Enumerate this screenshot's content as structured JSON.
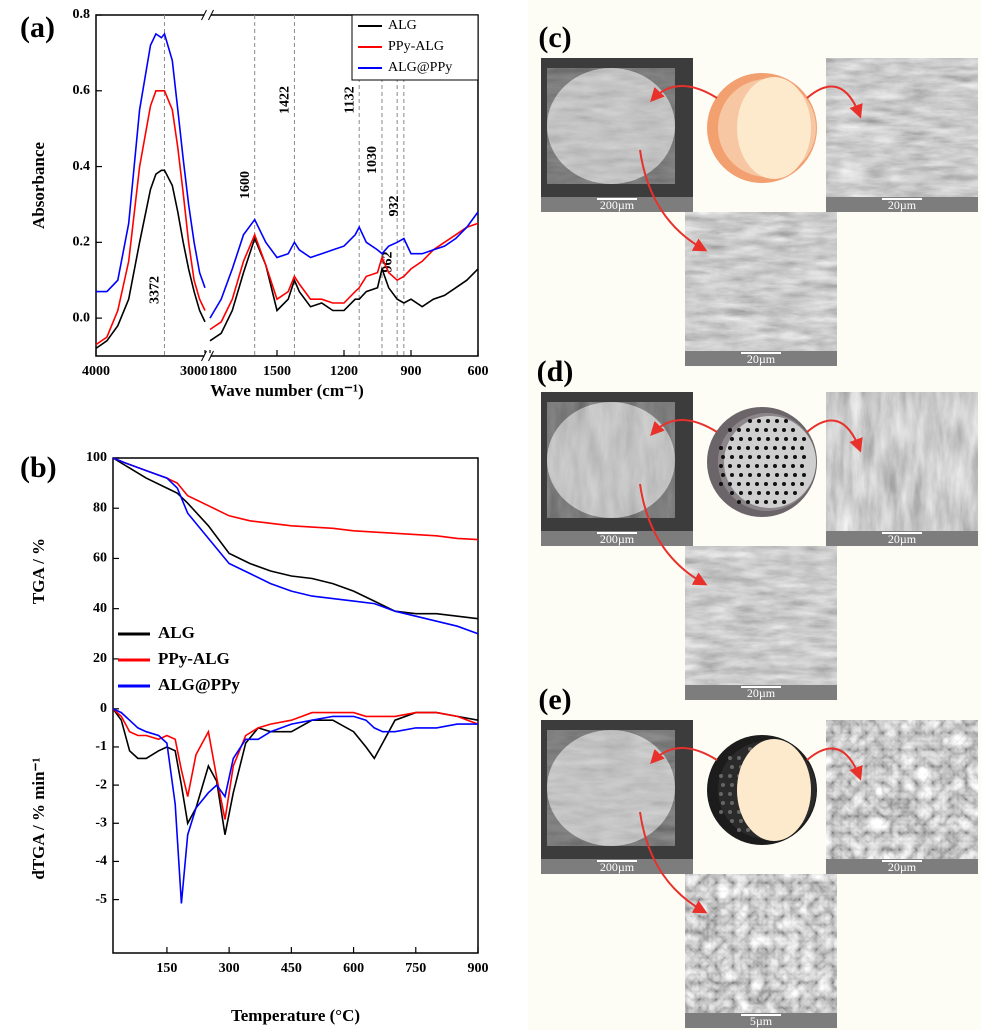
{
  "chart_data": [
    {
      "type": "line",
      "panel_label": "(a)",
      "xlabel": "Wave number (cm⁻¹)",
      "ylabel": "Absorbance",
      "xlim": [
        4000,
        600
      ],
      "x_break": [
        3000,
        1800
      ],
      "ylim": [
        -0.1,
        0.8
      ],
      "xticks": [
        4000,
        3000,
        1800,
        1500,
        1200,
        900,
        600
      ],
      "yticks": [
        {
          "value": 0,
          "label": "0.0"
        },
        0.2,
        0.4,
        0.6,
        0.8
      ],
      "peaks": [
        3372,
        1600,
        1422,
        1132,
        1030,
        962,
        932
      ],
      "legend": "upper right",
      "x": [
        4000,
        3900,
        3800,
        3700,
        3600,
        3500,
        3450,
        3400,
        3372,
        3300,
        3250,
        3200,
        3150,
        3100,
        3050,
        3000,
        1800,
        1750,
        1700,
        1650,
        1600,
        1550,
        1500,
        1450,
        1422,
        1400,
        1350,
        1300,
        1250,
        1200,
        1150,
        1132,
        1100,
        1050,
        1030,
        1000,
        962,
        932,
        900,
        850,
        800,
        750,
        700,
        650,
        600
      ],
      "series": [
        {
          "name": "ALG",
          "color": "#000000",
          "values": [
            -0.08,
            -0.06,
            -0.02,
            0.05,
            0.2,
            0.34,
            0.38,
            0.39,
            0.39,
            0.35,
            0.28,
            0.2,
            0.13,
            0.07,
            0.02,
            -0.01,
            -0.06,
            -0.04,
            0.02,
            0.12,
            0.21,
            0.14,
            0.02,
            0.05,
            0.1,
            0.07,
            0.03,
            0.04,
            0.02,
            0.02,
            0.05,
            0.05,
            0.07,
            0.08,
            0.13,
            0.08,
            0.05,
            0.04,
            0.05,
            0.03,
            0.05,
            0.06,
            0.08,
            0.1,
            0.13
          ]
        },
        {
          "name": "PPy-ALG",
          "color": "#ff0000",
          "values": [
            -0.07,
            -0.05,
            0.02,
            0.15,
            0.4,
            0.56,
            0.6,
            0.6,
            0.6,
            0.55,
            0.45,
            0.33,
            0.2,
            0.1,
            0.05,
            0.02,
            -0.03,
            -0.01,
            0.05,
            0.15,
            0.22,
            0.14,
            0.05,
            0.07,
            0.11,
            0.09,
            0.05,
            0.05,
            0.04,
            0.04,
            0.07,
            0.08,
            0.11,
            0.12,
            0.16,
            0.12,
            0.1,
            0.11,
            0.13,
            0.15,
            0.18,
            0.2,
            0.22,
            0.24,
            0.25
          ]
        },
        {
          "name": "ALG@PPy",
          "color": "#0000ff",
          "values": [
            0.07,
            0.07,
            0.1,
            0.25,
            0.55,
            0.72,
            0.75,
            0.74,
            0.75,
            0.68,
            0.55,
            0.42,
            0.3,
            0.2,
            0.12,
            0.08,
            0.0,
            0.05,
            0.13,
            0.22,
            0.26,
            0.2,
            0.16,
            0.17,
            0.2,
            0.18,
            0.16,
            0.17,
            0.18,
            0.19,
            0.22,
            0.24,
            0.2,
            0.18,
            0.17,
            0.19,
            0.2,
            0.21,
            0.17,
            0.17,
            0.18,
            0.19,
            0.21,
            0.24,
            0.28
          ]
        }
      ]
    },
    {
      "type": "line",
      "panel_label": "(b)",
      "ylabel": "TGA / %",
      "xlim": [
        20,
        900
      ],
      "ylim": [
        10,
        100
      ],
      "yticks": [
        20,
        40,
        60,
        80,
        100
      ],
      "legend": "lower left",
      "x": [
        20,
        50,
        100,
        150,
        175,
        200,
        250,
        300,
        350,
        400,
        450,
        500,
        550,
        600,
        650,
        700,
        750,
        800,
        850,
        900
      ],
      "series": [
        {
          "name": "ALG",
          "color": "#000000",
          "values": [
            100,
            97,
            92,
            88,
            86,
            82,
            73,
            62,
            58,
            55,
            53,
            52,
            50,
            47,
            43,
            39,
            38,
            38,
            37,
            36
          ]
        },
        {
          "name": "PPy-ALG",
          "color": "#ff0000",
          "values": [
            100,
            98,
            95,
            92,
            90,
            85,
            81,
            77,
            75,
            74,
            73,
            72.5,
            72,
            71,
            70.5,
            70,
            69.5,
            69,
            68,
            67.5
          ]
        },
        {
          "name": "ALG@PPy",
          "color": "#0000ff",
          "values": [
            100,
            98,
            95,
            92,
            88,
            78,
            68,
            58,
            54,
            50,
            47,
            45,
            44,
            43,
            42,
            39,
            37,
            35,
            33,
            30
          ]
        }
      ]
    },
    {
      "type": "line",
      "ylabel": "dTGA / % min⁻¹",
      "xlabel": "Temperature (°C)",
      "xlim": [
        20,
        900
      ],
      "ylim": [
        -6.4,
        0.65
      ],
      "xticks": [
        150,
        300,
        450,
        600,
        750,
        900
      ],
      "yticks": [
        -5,
        -4,
        -3,
        -2,
        -1,
        0
      ],
      "x": [
        20,
        40,
        60,
        80,
        100,
        130,
        150,
        170,
        185,
        200,
        220,
        250,
        270,
        290,
        310,
        340,
        370,
        400,
        450,
        500,
        550,
        600,
        630,
        650,
        670,
        700,
        750,
        800,
        850,
        900
      ],
      "series": [
        {
          "color": "#000000",
          "values": [
            0,
            -0.3,
            -1.1,
            -1.3,
            -1.3,
            -1.1,
            -1.0,
            -1.1,
            -2.0,
            -3.0,
            -2.6,
            -1.5,
            -1.9,
            -3.3,
            -2.2,
            -0.9,
            -0.5,
            -0.6,
            -0.6,
            -0.3,
            -0.3,
            -0.6,
            -1.0,
            -1.3,
            -0.9,
            -0.3,
            -0.1,
            -0.1,
            -0.2,
            -0.3
          ]
        },
        {
          "color": "#ff0000",
          "values": [
            0,
            -0.2,
            -0.6,
            -0.7,
            -0.7,
            -0.8,
            -0.7,
            -0.8,
            -1.6,
            -2.3,
            -1.2,
            -0.6,
            -1.8,
            -2.9,
            -1.5,
            -0.7,
            -0.5,
            -0.4,
            -0.3,
            -0.1,
            -0.1,
            -0.1,
            -0.2,
            -0.2,
            -0.2,
            -0.2,
            -0.1,
            -0.1,
            -0.2,
            -0.4
          ]
        },
        {
          "color": "#0000ff",
          "values": [
            0,
            -0.1,
            -0.3,
            -0.5,
            -0.6,
            -0.7,
            -0.9,
            -2.5,
            -5.1,
            -3.3,
            -2.6,
            -2.2,
            -2.0,
            -2.3,
            -1.3,
            -0.8,
            -0.8,
            -0.6,
            -0.4,
            -0.3,
            -0.2,
            -0.2,
            -0.3,
            -0.5,
            -0.6,
            -0.6,
            -0.5,
            -0.5,
            -0.4,
            -0.4
          ]
        }
      ]
    }
  ],
  "panels": [
    {
      "label": "(c)",
      "scale_bars": [
        "200µm",
        "20µm",
        "20µm"
      ]
    },
    {
      "label": "(d)",
      "scale_bars": [
        "200µm",
        "20µm",
        "20µm"
      ]
    },
    {
      "label": "(e)",
      "scale_bars": [
        "200µm",
        "20µm",
        "5µm"
      ]
    }
  ]
}
